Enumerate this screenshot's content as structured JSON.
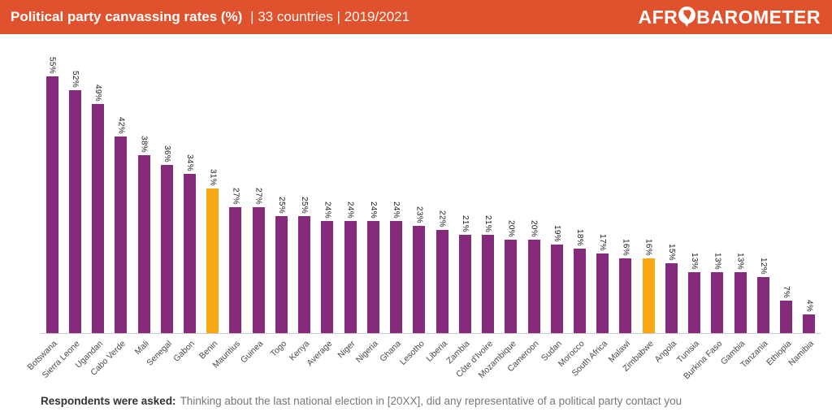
{
  "header": {
    "title_bold": "Political party canvassing rates (%)",
    "title_rest": "| 33 countries | 2019/2021",
    "logo_prefix": "AFR",
    "logo_suffix": "BAROMETER",
    "background_color": "#E0522D"
  },
  "chart_data": {
    "type": "bar",
    "title": "Political party canvassing rates (%)",
    "subtitle": "33 countries | 2019/2021",
    "unit": "%",
    "categories": [
      "Botswana",
      "Sierra Leone",
      "Ugandan",
      "Cabo Verde",
      "Mali",
      "Senegal",
      "Gabon",
      "Benin",
      "Mauritius",
      "Guinea",
      "Togo",
      "Kenya",
      "Average",
      "Niger",
      "Nigeria",
      "Ghana",
      "Lesotho",
      "Liberia",
      "Zambia",
      "Côte d'Ivoire",
      "Mozambique",
      "Cameroon",
      "Sudan",
      "Morocco",
      "South Africa",
      "Malawi",
      "Zimbabwe",
      "Angola",
      "Tunisia",
      "Burkina Faso",
      "Gambia",
      "Tanzania",
      "Ethiopia",
      "Namibia"
    ],
    "values": [
      55,
      52,
      49,
      42,
      38,
      36,
      34,
      31,
      27,
      27,
      25,
      25,
      24,
      24,
      24,
      24,
      23,
      22,
      21,
      21,
      20,
      20,
      19,
      18,
      17,
      16,
      16,
      15,
      13,
      13,
      13,
      12,
      7,
      4
    ],
    "highlight_categories": [
      "Benin",
      "Zimbabwe"
    ],
    "bar_color": "#862B7B",
    "highlight_color": "#F7A814",
    "axis_line_color": "#CCCCCC",
    "ylim": [
      0,
      60
    ],
    "grid": false,
    "legend": false,
    "value_label_rotation": 90,
    "category_label_rotation": -45
  },
  "footer": {
    "question_label": "Respondents were asked:",
    "question_text": "Thinking about the last national election in [20XX], did any representative of a political party contact you"
  }
}
